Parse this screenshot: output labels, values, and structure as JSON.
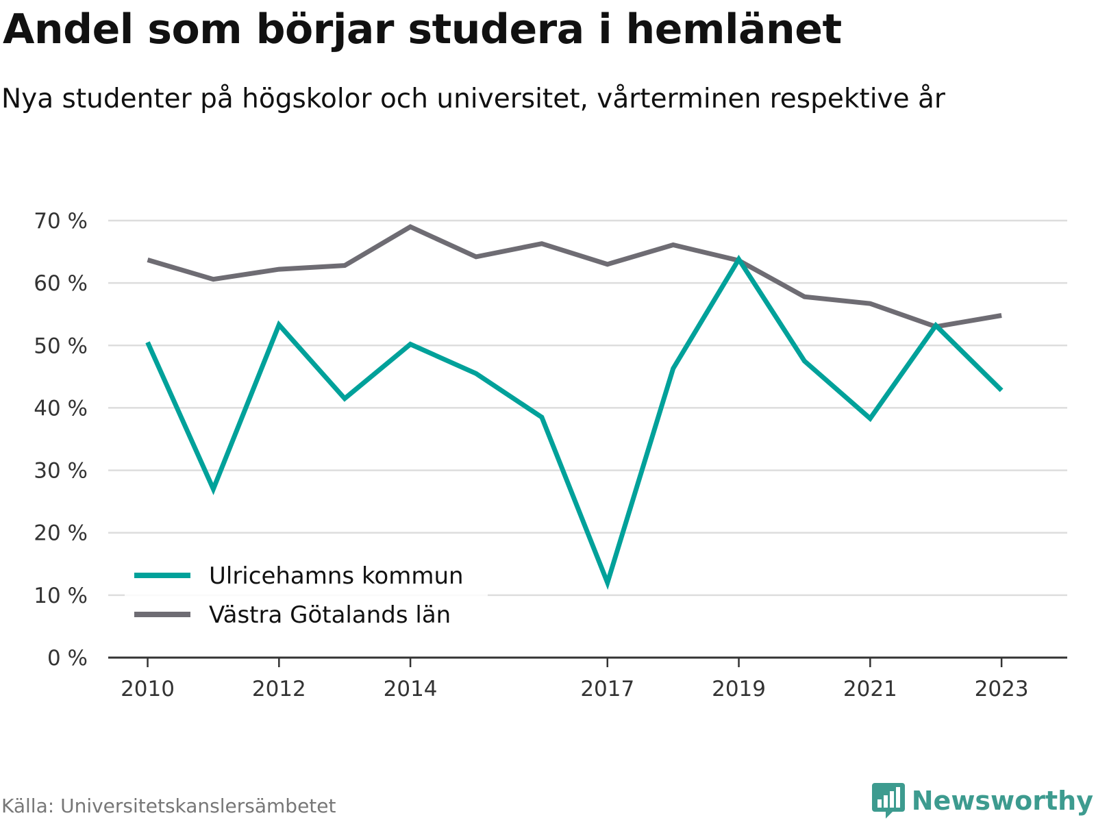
{
  "chart_data": {
    "type": "line",
    "title": "Andel som börjar studera i hemlänet",
    "subtitle": "Nya studenter på högskolor och universitet, vårterminen respektive år",
    "x": [
      2010,
      2011,
      2012,
      2013,
      2014,
      2015,
      2016,
      2017,
      2018,
      2019,
      2020,
      2021,
      2022,
      2023
    ],
    "x_tick_labels": [
      "2010",
      "2012",
      "2014",
      "2017",
      "2019",
      "2021",
      "2023"
    ],
    "y_tick_labels": [
      "0 %",
      "10 %",
      "20 %",
      "30 %",
      "40 %",
      "50 %",
      "60 %",
      "70 %"
    ],
    "y_ticks": [
      0,
      10,
      20,
      30,
      40,
      50,
      60,
      70
    ],
    "ylim": [
      0,
      70
    ],
    "grid": true,
    "legend_position": "bottom-left",
    "series": [
      {
        "name": "Ulricehamns kommun",
        "color": "#00a19a",
        "values": [
          50.5,
          27.0,
          53.3,
          41.5,
          50.2,
          45.5,
          38.5,
          12.0,
          46.3,
          63.8,
          47.5,
          38.3,
          53.2,
          42.8
        ]
      },
      {
        "name": "Västra Götalands län",
        "color": "#6e6c73",
        "values": [
          63.7,
          60.6,
          62.2,
          62.8,
          69.0,
          64.2,
          66.3,
          63.0,
          66.1,
          63.6,
          57.8,
          56.7,
          53.0,
          54.8
        ]
      }
    ],
    "source": "Källa: Universitetskanslersämbetet"
  },
  "branding": {
    "name": "Newsworthy",
    "color": "#3d9b8f",
    "icon": "bar-chart-speech-bubble-icon"
  },
  "colors": {
    "axis": "#333333",
    "grid": "#dddddd"
  }
}
